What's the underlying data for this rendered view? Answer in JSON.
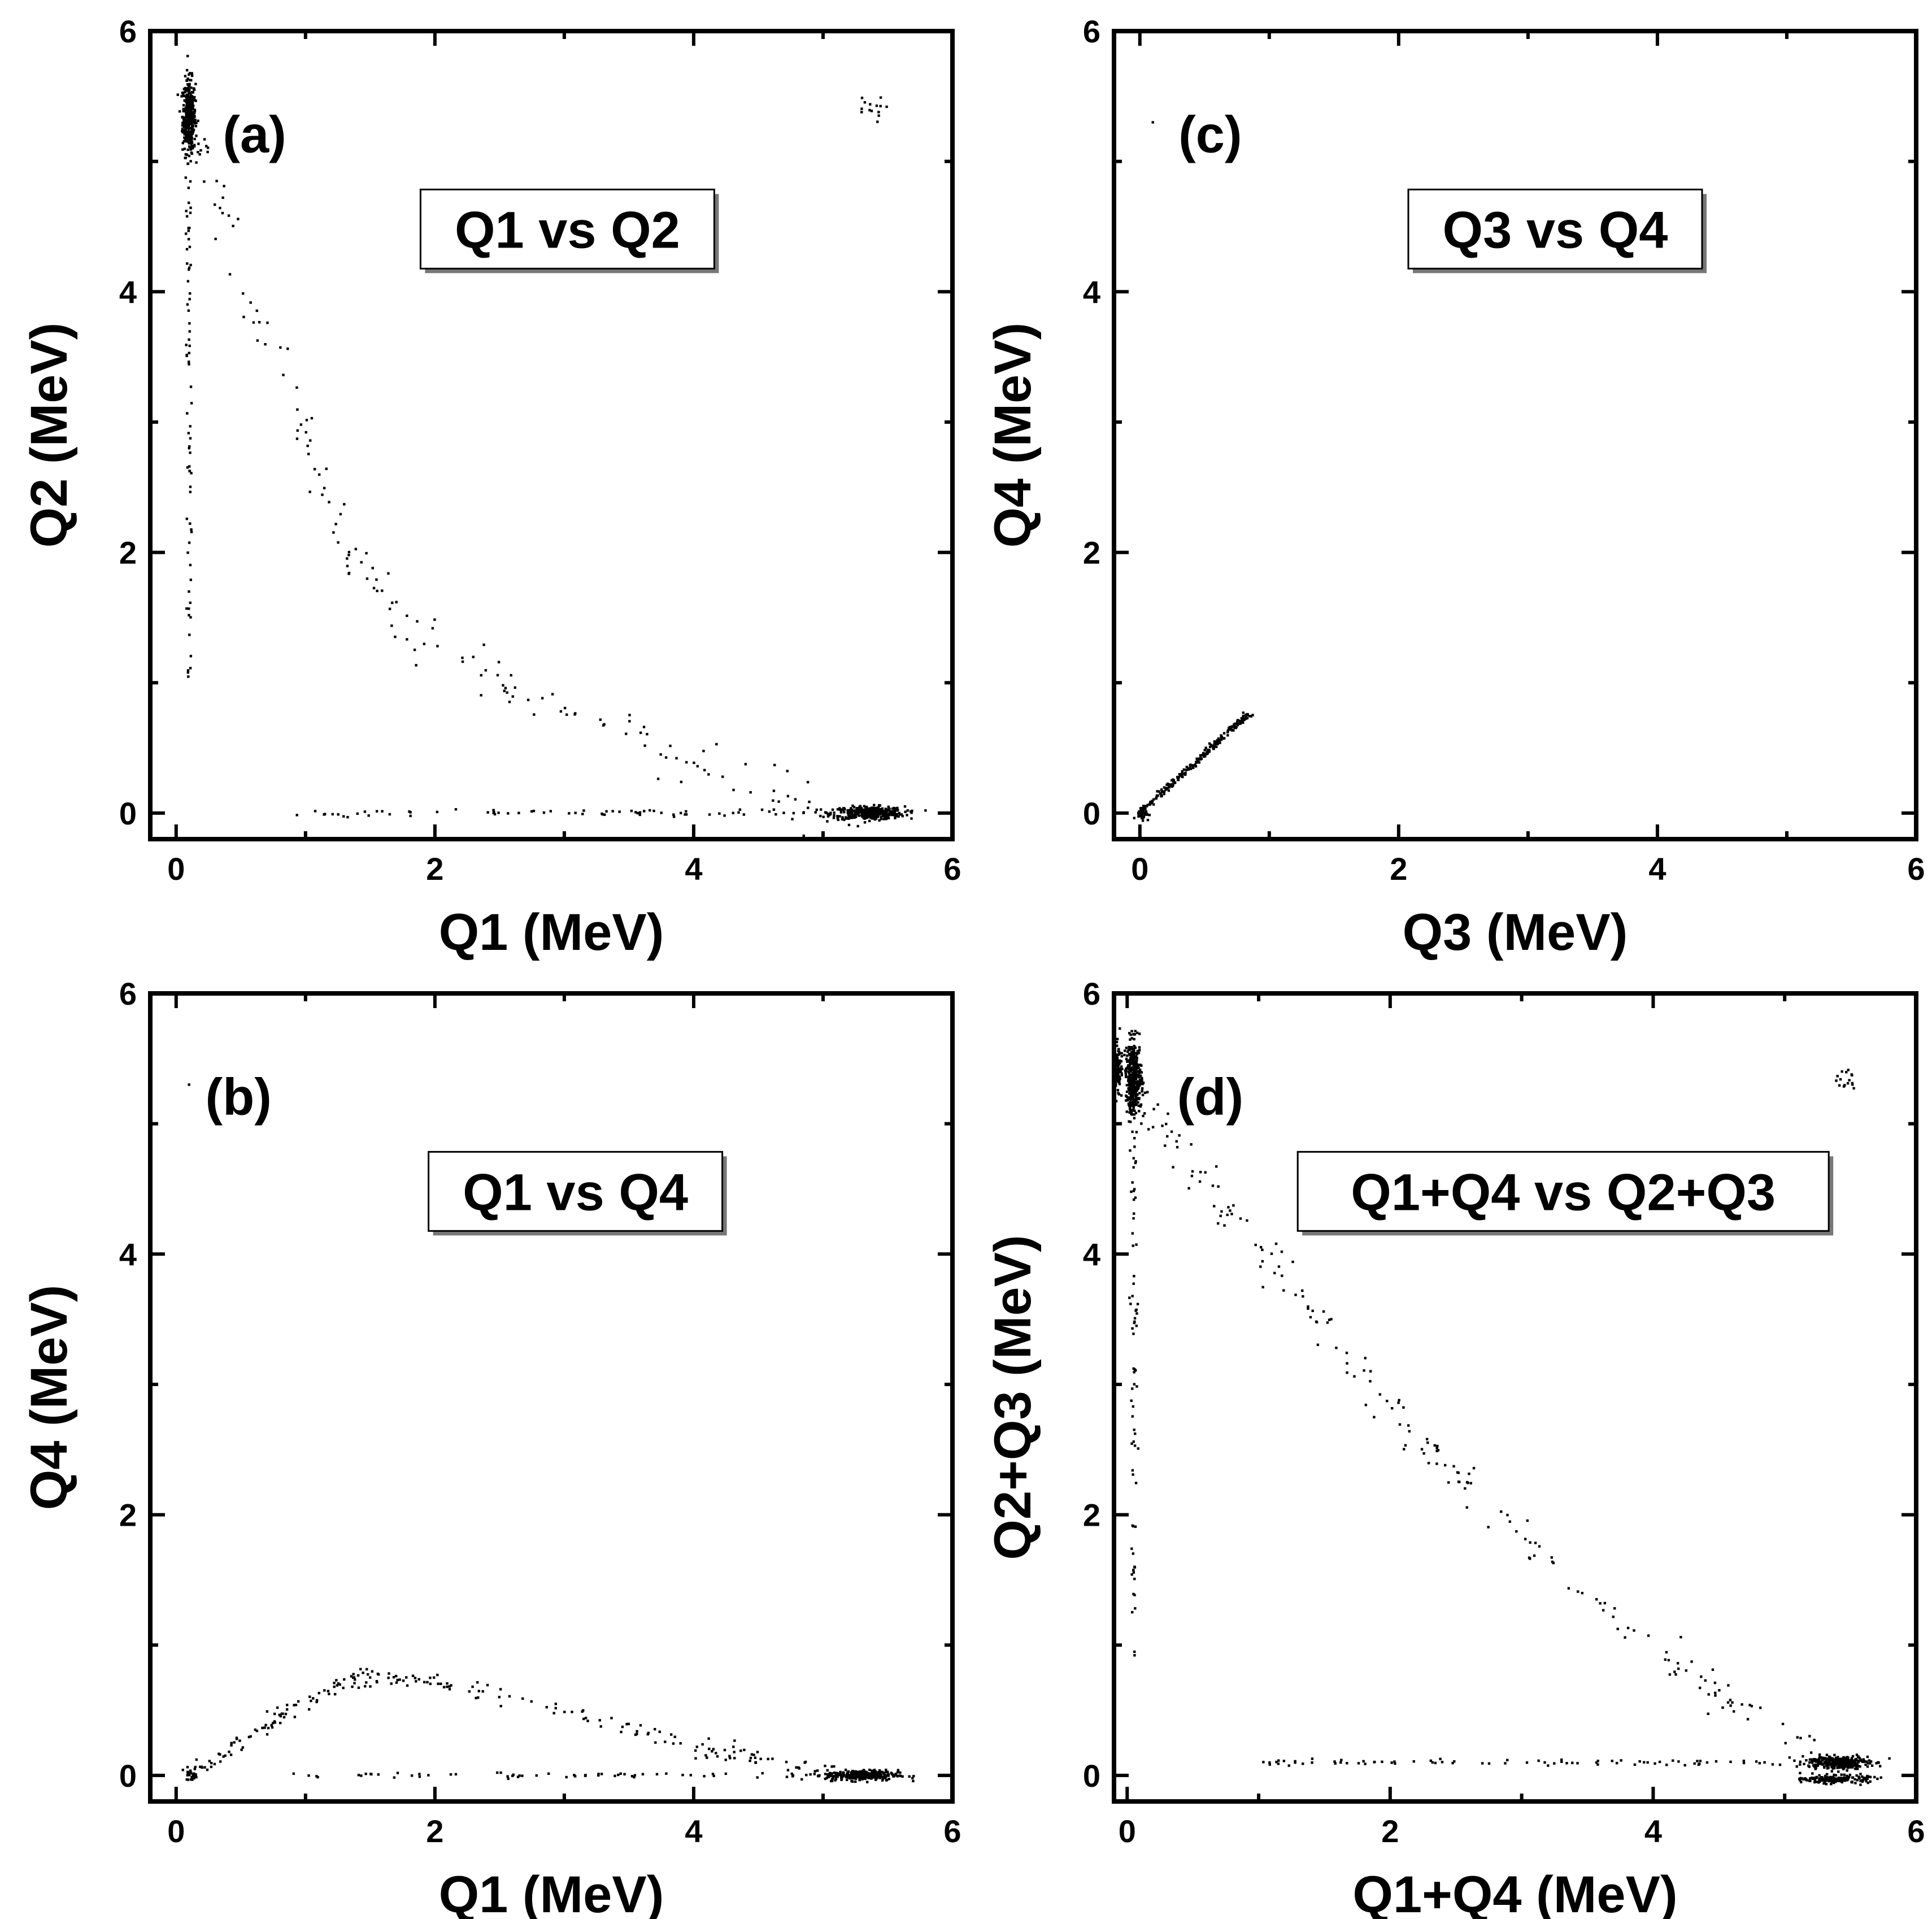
{
  "chart_data": [
    {
      "id": "a",
      "type": "scatter",
      "panel_label": "(a)",
      "legend": "Q1 vs Q2",
      "xlabel": "Q1 (MeV)",
      "ylabel": "Q2 (MeV)",
      "xlim": [
        -0.2,
        6
      ],
      "ylim": [
        -0.2,
        6
      ],
      "xticks": [
        0,
        2,
        4,
        6
      ],
      "yticks": [
        0,
        2,
        4,
        6
      ],
      "grid": false,
      "features": [
        {
          "kind": "cluster",
          "center": [
            0.1,
            5.35
          ],
          "spread": [
            0.025,
            0.14
          ],
          "count": 380
        },
        {
          "kind": "cluster",
          "center": [
            5.35,
            0.0
          ],
          "spread": [
            0.14,
            0.025
          ],
          "count": 380
        },
        {
          "kind": "cluster",
          "center": [
            5.35,
            5.4
          ],
          "spread": [
            0.06,
            0.05
          ],
          "count": 14
        },
        {
          "kind": "line",
          "from": [
            0.1,
            5.0
          ],
          "to": [
            0.1,
            0.9
          ],
          "jitter": [
            0.012,
            0.02
          ],
          "count": 70
        },
        {
          "kind": "line",
          "from": [
            0.9,
            0.0
          ],
          "to": [
            5.0,
            0.0
          ],
          "jitter": [
            0.06,
            0.012
          ],
          "count": 70
        },
        {
          "kind": "curve",
          "points": [
            [
              0.1,
              5.3
            ],
            [
              0.2,
              5.0
            ],
            [
              0.4,
              4.5
            ],
            [
              0.6,
              3.9
            ],
            [
              0.9,
              3.2
            ],
            [
              1.1,
              2.6
            ],
            [
              1.3,
              2.1
            ],
            [
              1.5,
              1.8
            ],
            [
              1.8,
              1.45
            ],
            [
              2.2,
              1.15
            ],
            [
              2.7,
              0.9
            ],
            [
              3.2,
              0.72
            ],
            [
              3.7,
              0.5
            ],
            [
              4.2,
              0.28
            ],
            [
              4.7,
              0.12
            ],
            [
              5.2,
              0.03
            ]
          ],
          "jitter": [
            0.05,
            0.09
          ],
          "count": 160
        }
      ]
    },
    {
      "id": "c",
      "type": "scatter",
      "panel_label": "(c)",
      "legend": "Q3 vs Q4",
      "xlabel": "Q3 (MeV)",
      "ylabel": "Q4 (MeV)",
      "xlim": [
        -0.2,
        6
      ],
      "ylim": [
        -0.2,
        6
      ],
      "xticks": [
        0,
        2,
        4,
        6
      ],
      "yticks": [
        0,
        2,
        4,
        6
      ],
      "grid": false,
      "features": [
        {
          "kind": "line",
          "from": [
            0.0,
            0.0
          ],
          "to": [
            0.85,
            0.77
          ],
          "jitter": [
            0.012,
            0.012
          ],
          "count": 240
        },
        {
          "kind": "cluster",
          "center": [
            0.02,
            0.0
          ],
          "spread": [
            0.025,
            0.025
          ],
          "count": 40
        },
        {
          "kind": "cluster",
          "center": [
            0.1,
            5.3
          ],
          "spread": [
            0.0,
            0.0
          ],
          "count": 1
        }
      ]
    },
    {
      "id": "b",
      "type": "scatter",
      "panel_label": "(b)",
      "legend": "Q1 vs Q4",
      "xlabel": "Q1 (MeV)",
      "ylabel": "Q4 (MeV)",
      "xlim": [
        -0.2,
        6
      ],
      "ylim": [
        -0.2,
        6
      ],
      "xticks": [
        0,
        2,
        4,
        6
      ],
      "yticks": [
        0,
        2,
        4,
        6
      ],
      "grid": false,
      "features": [
        {
          "kind": "cluster",
          "center": [
            5.3,
            0.0
          ],
          "spread": [
            0.14,
            0.02
          ],
          "count": 300
        },
        {
          "kind": "cluster",
          "center": [
            0.12,
            0.0
          ],
          "spread": [
            0.02,
            0.02
          ],
          "count": 25
        },
        {
          "kind": "cluster",
          "center": [
            0.1,
            5.3
          ],
          "spread": [
            0.0,
            0.0
          ],
          "count": 1
        },
        {
          "kind": "line",
          "from": [
            0.9,
            0.0
          ],
          "to": [
            5.0,
            0.0
          ],
          "jitter": [
            0.06,
            0.012
          ],
          "count": 60
        },
        {
          "kind": "curve",
          "points": [
            [
              0.1,
              0.0
            ],
            [
              0.3,
              0.12
            ],
            [
              0.6,
              0.32
            ],
            [
              0.9,
              0.52
            ],
            [
              1.2,
              0.68
            ],
            [
              1.5,
              0.77
            ],
            [
              1.8,
              0.75
            ],
            [
              2.2,
              0.68
            ],
            [
              2.7,
              0.55
            ],
            [
              3.2,
              0.42
            ],
            [
              3.7,
              0.3
            ],
            [
              4.2,
              0.18
            ],
            [
              4.7,
              0.08
            ],
            [
              5.2,
              0.02
            ]
          ],
          "jitter": [
            0.04,
            0.035
          ],
          "count": 230
        }
      ]
    },
    {
      "id": "d",
      "type": "scatter",
      "panel_label": "(d)",
      "legend": "Q1+Q4 vs Q2+Q3",
      "xlabel": "Q1+Q4 (MeV)",
      "ylabel": "Q2+Q3 (MeV)",
      "xlim": [
        -0.1,
        6
      ],
      "ylim": [
        -0.2,
        6
      ],
      "xticks": [
        0,
        2,
        4,
        6
      ],
      "yticks": [
        0,
        2,
        4,
        6
      ],
      "grid": false,
      "features": [
        {
          "kind": "cluster",
          "center": [
            -0.08,
            5.4
          ],
          "spread": [
            0.02,
            0.1
          ],
          "count": 140
        },
        {
          "kind": "cluster",
          "center": [
            0.05,
            5.35
          ],
          "spread": [
            0.03,
            0.14
          ],
          "count": 380
        },
        {
          "kind": "cluster",
          "center": [
            5.4,
            0.1
          ],
          "spread": [
            0.12,
            0.025
          ],
          "count": 300
        },
        {
          "kind": "cluster",
          "center": [
            5.4,
            -0.03
          ],
          "spread": [
            0.12,
            0.015
          ],
          "count": 180
        },
        {
          "kind": "cluster",
          "center": [
            5.45,
            5.35
          ],
          "spread": [
            0.05,
            0.06
          ],
          "count": 16
        },
        {
          "kind": "line",
          "from": [
            0.05,
            5.0
          ],
          "to": [
            0.05,
            0.9
          ],
          "jitter": [
            0.012,
            0.02
          ],
          "count": 70
        },
        {
          "kind": "line",
          "from": [
            1.0,
            0.1
          ],
          "to": [
            5.0,
            0.1
          ],
          "jitter": [
            0.06,
            0.01
          ],
          "count": 80
        },
        {
          "kind": "curve",
          "points": [
            [
              0.1,
              5.2
            ],
            [
              0.4,
              4.8
            ],
            [
              0.8,
              4.3
            ],
            [
              1.2,
              3.8
            ],
            [
              1.6,
              3.3
            ],
            [
              2.0,
              2.8
            ],
            [
              2.4,
              2.4
            ],
            [
              2.8,
              2.05
            ],
            [
              3.2,
              1.65
            ],
            [
              3.6,
              1.3
            ],
            [
              4.0,
              1.0
            ],
            [
              4.4,
              0.7
            ],
            [
              4.8,
              0.4
            ],
            [
              5.2,
              0.17
            ]
          ],
          "jitter": [
            0.05,
            0.08
          ],
          "count": 190
        }
      ]
    }
  ]
}
